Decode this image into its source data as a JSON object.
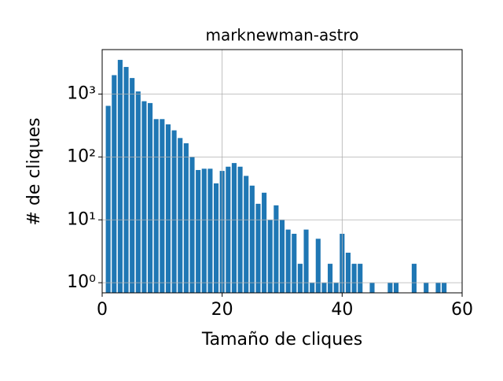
{
  "chart_data": {
    "type": "bar",
    "title": "marknewman-astro",
    "xlabel": "Tamaño de cliques",
    "ylabel": "# de cliques",
    "x": [
      1,
      2,
      3,
      4,
      5,
      6,
      7,
      8,
      9,
      10,
      11,
      12,
      13,
      14,
      15,
      16,
      17,
      18,
      19,
      20,
      21,
      22,
      23,
      24,
      25,
      26,
      27,
      28,
      29,
      30,
      31,
      32,
      33,
      34,
      35,
      36,
      37,
      38,
      39,
      40,
      41,
      42,
      43,
      45,
      48,
      49,
      52,
      54,
      56,
      57
    ],
    "values": [
      650,
      2000,
      3500,
      2700,
      1800,
      1100,
      770,
      720,
      400,
      400,
      330,
      265,
      200,
      165,
      100,
      62,
      65,
      65,
      38,
      60,
      70,
      80,
      70,
      50,
      35,
      18,
      27,
      10,
      17,
      10,
      7,
      6,
      2,
      7,
      1,
      5,
      1,
      2,
      1,
      6,
      3,
      2,
      2,
      1,
      1,
      1,
      2,
      1,
      1,
      1
    ],
    "color": "#1f77b4",
    "xlim": [
      0,
      60
    ],
    "xticks": [
      0,
      20,
      40,
      60
    ],
    "ylim": [
      0.69,
      5100
    ],
    "yscale": "log",
    "yticks": [
      {
        "value": 1,
        "label": "10⁰"
      },
      {
        "value": 10,
        "label": "10¹"
      },
      {
        "value": 100,
        "label": "10²"
      },
      {
        "value": 1000,
        "label": "10³"
      }
    ],
    "grid": true
  }
}
